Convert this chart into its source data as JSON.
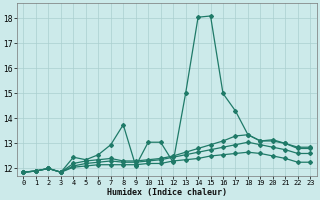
{
  "lines": [
    {
      "x": [
        0,
        1,
        2,
        3,
        4,
        5,
        6,
        7,
        8,
        9,
        10,
        11,
        12,
        13,
        14,
        15,
        16,
        17,
        18,
        19,
        20,
        21,
        22,
        23
      ],
      "y": [
        11.85,
        11.9,
        12.0,
        11.85,
        12.45,
        12.35,
        12.55,
        12.95,
        13.75,
        12.1,
        13.05,
        13.05,
        12.25,
        15.0,
        18.05,
        18.1,
        15.0,
        14.3,
        13.35,
        13.1,
        13.15,
        13.0,
        12.8,
        12.8
      ]
    },
    {
      "x": [
        0,
        1,
        2,
        3,
        4,
        5,
        6,
        7,
        8,
        9,
        10,
        11,
        12,
        13,
        14,
        15,
        16,
        17,
        18,
        19,
        20,
        21,
        22,
        23
      ],
      "y": [
        11.85,
        11.9,
        12.0,
        11.85,
        12.2,
        12.3,
        12.35,
        12.4,
        12.3,
        12.3,
        12.35,
        12.4,
        12.5,
        12.65,
        12.8,
        12.95,
        13.1,
        13.3,
        13.35,
        13.1,
        13.1,
        13.0,
        12.85,
        12.85
      ]
    },
    {
      "x": [
        0,
        1,
        2,
        3,
        4,
        5,
        6,
        7,
        8,
        9,
        10,
        11,
        12,
        13,
        14,
        15,
        16,
        17,
        18,
        19,
        20,
        21,
        22,
        23
      ],
      "y": [
        11.85,
        11.9,
        12.0,
        11.85,
        12.1,
        12.2,
        12.25,
        12.3,
        12.25,
        12.25,
        12.3,
        12.35,
        12.45,
        12.55,
        12.65,
        12.75,
        12.85,
        12.95,
        13.05,
        12.95,
        12.85,
        12.75,
        12.6,
        12.6
      ]
    },
    {
      "x": [
        0,
        1,
        2,
        3,
        4,
        5,
        6,
        7,
        8,
        9,
        10,
        11,
        12,
        13,
        14,
        15,
        16,
        17,
        18,
        19,
        20,
        21,
        22,
        23
      ],
      "y": [
        11.85,
        11.9,
        12.0,
        11.85,
        12.05,
        12.1,
        12.15,
        12.15,
        12.15,
        12.15,
        12.2,
        12.2,
        12.3,
        12.35,
        12.4,
        12.5,
        12.55,
        12.6,
        12.65,
        12.6,
        12.5,
        12.4,
        12.25,
        12.25
      ]
    }
  ],
  "color": "#1f7a68",
  "bg_color": "#cceaea",
  "grid_major_color": "#aacfcf",
  "grid_minor_color": "#bbdddd",
  "xlabel": "Humidex (Indice chaleur)",
  "ylim": [
    11.7,
    18.6
  ],
  "xlim": [
    -0.5,
    23.5
  ],
  "yticks": [
    12,
    13,
    14,
    15,
    16,
    17,
    18
  ],
  "xticks": [
    0,
    1,
    2,
    3,
    4,
    5,
    6,
    7,
    8,
    9,
    10,
    11,
    12,
    13,
    14,
    15,
    16,
    17,
    18,
    19,
    20,
    21,
    22,
    23
  ]
}
